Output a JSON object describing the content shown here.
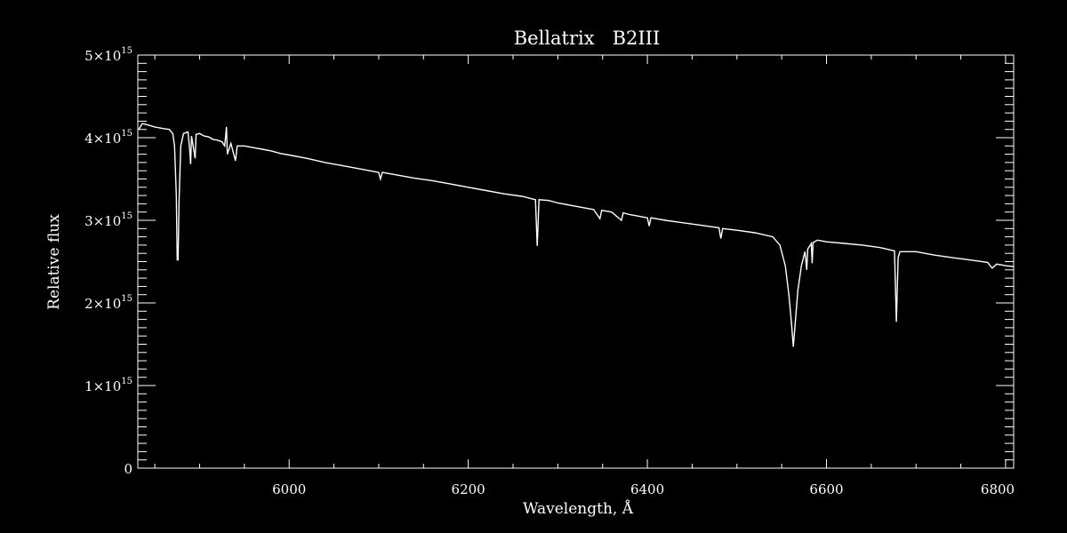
{
  "chart_data": {
    "type": "line",
    "title": "Bellatrix   B2III",
    "xlabel": "Wavelength, Å",
    "ylabel": "Relative flux",
    "xlim": [
      5831,
      6809
    ],
    "ylim": [
      0,
      5000000000000000.0
    ],
    "x_ticks": [
      6000,
      6200,
      6400,
      6600,
      6800
    ],
    "x_tick_labels": [
      "6000",
      "6200",
      "6400",
      "6600",
      "6800"
    ],
    "y_ticks": [
      0,
      1000000000000000.0,
      2000000000000000.0,
      3000000000000000.0,
      4000000000000000.0,
      5000000000000000.0
    ],
    "y_tick_labels": [
      {
        "base": "0",
        "exp": ""
      },
      {
        "base": "1×10",
        "exp": "15"
      },
      {
        "base": "2×10",
        "exp": "15"
      },
      {
        "base": "3×10",
        "exp": "15"
      },
      {
        "base": "4×10",
        "exp": "15"
      },
      {
        "base": "5×10",
        "exp": "15"
      }
    ],
    "grid": false,
    "colors": {
      "background": "#000000",
      "foreground": "#ffffff"
    },
    "series": [
      {
        "x": [
          5832,
          5836,
          5840,
          5850,
          5860,
          5866,
          5870,
          5872,
          5874,
          5875,
          5876,
          5877,
          5879,
          5882,
          5887,
          5889,
          5890,
          5891,
          5895,
          5896,
          5900,
          5905,
          5910,
          5915,
          5920,
          5925,
          5928,
          5930,
          5931,
          5935,
          5940,
          5942,
          5950,
          5960,
          5970,
          5980,
          5990,
          6000,
          6020,
          6040,
          6060,
          6080,
          6100,
          6102,
          6104,
          6120,
          6140,
          6160,
          6180,
          6200,
          6220,
          6240,
          6260,
          6275,
          6277,
          6279,
          6290,
          6300,
          6320,
          6340,
          6347,
          6349,
          6360,
          6371,
          6373,
          6380,
          6400,
          6402,
          6404,
          6420,
          6440,
          6460,
          6480,
          6482,
          6484,
          6500,
          6520,
          6540,
          6548,
          6554,
          6558,
          6561,
          6563,
          6565,
          6568,
          6572,
          6576,
          6578,
          6579,
          6583,
          6584,
          6585,
          6590,
          6600,
          6620,
          6640,
          6660,
          6676,
          6678,
          6680,
          6682,
          6700,
          6720,
          6740,
          6760,
          6780,
          6785,
          6790,
          6800,
          6809
        ],
        "y": [
          4100000000000000.0,
          4170000000000000.0,
          4160000000000000.0,
          4130000000000000.0,
          4110000000000000.0,
          4100000000000000.0,
          4050000000000000.0,
          3900000000000000.0,
          3300000000000000.0,
          2520000000000000.0,
          2520000000000000.0,
          3200000000000000.0,
          3900000000000000.0,
          4050000000000000.0,
          4070000000000000.0,
          3850000000000000.0,
          3680000000000000.0,
          4020000000000000.0,
          3750000000000000.0,
          4040000000000000.0,
          4050000000000000.0,
          4020000000000000.0,
          4010000000000000.0,
          3980000000000000.0,
          3970000000000000.0,
          3950000000000000.0,
          3900000000000000.0,
          4130000000000000.0,
          3800000000000000.0,
          3930000000000000.0,
          3720000000000000.0,
          3900000000000000.0,
          3900000000000000.0,
          3880000000000000.0,
          3860000000000000.0,
          3840000000000000.0,
          3810000000000000.0,
          3790000000000000.0,
          3750000000000000.0,
          3700000000000000.0,
          3660000000000000.0,
          3620000000000000.0,
          3580000000000000.0,
          3500000000000000.0,
          3580000000000000.0,
          3550000000000000.0,
          3510000000000000.0,
          3480000000000000.0,
          3440000000000000.0,
          3400000000000000.0,
          3360000000000000.0,
          3320000000000000.0,
          3290000000000000.0,
          3250000000000000.0,
          2690000000000000.0,
          3250000000000000.0,
          3240000000000000.0,
          3210000000000000.0,
          3170000000000000.0,
          3130000000000000.0,
          3020000000000000.0,
          3120000000000000.0,
          3100000000000000.0,
          3000000000000000.0,
          3090000000000000.0,
          3070000000000000.0,
          3030000000000000.0,
          2930000000000000.0,
          3030000000000000.0,
          3000000000000000.0,
          2970000000000000.0,
          2940000000000000.0,
          2910000000000000.0,
          2780000000000000.0,
          2900000000000000.0,
          2880000000000000.0,
          2850000000000000.0,
          2800000000000000.0,
          2700000000000000.0,
          2450000000000000.0,
          2100000000000000.0,
          1750000000000000.0,
          1470000000000000.0,
          1750000000000000.0,
          2150000000000000.0,
          2450000000000000.0,
          2620000000000000.0,
          2400000000000000.0,
          2650000000000000.0,
          2720000000000000.0,
          2480000000000000.0,
          2730000000000000.0,
          2760000000000000.0,
          2740000000000000.0,
          2720000000000000.0,
          2700000000000000.0,
          2670000000000000.0,
          2630000000000000.0,
          1770000000000000.0,
          2550000000000000.0,
          2620000000000000.0,
          2620000000000000.0,
          2580000000000000.0,
          2550000000000000.0,
          2520000000000000.0,
          2490000000000000.0,
          2420000000000000.0,
          2470000000000000.0,
          2450000000000000.0,
          2440000000000000.0
        ]
      }
    ]
  }
}
